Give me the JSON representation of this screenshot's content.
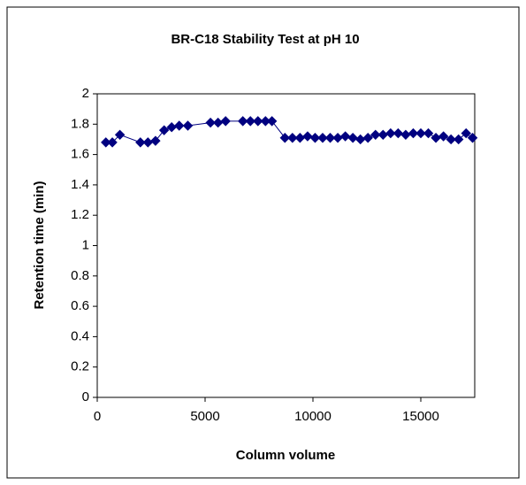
{
  "chart_data": {
    "type": "line",
    "title": "BR-C18 Stability Test at pH 10",
    "x_label": "Column volume",
    "y_label": "Retention time (min)",
    "x": [
      400,
      700,
      1050,
      2000,
      2350,
      2700,
      3100,
      3450,
      3800,
      4200,
      5250,
      5600,
      5950,
      6750,
      7100,
      7450,
      7800,
      8100,
      8700,
      9050,
      9400,
      9750,
      10100,
      10450,
      10800,
      11150,
      11500,
      11850,
      12200,
      12550,
      12900,
      13250,
      13600,
      13950,
      14300,
      14650,
      15000,
      15350,
      15700,
      16050,
      16400,
      16750,
      17100,
      17400
    ],
    "series": [
      {
        "name": "Retention time",
        "color": "#000080",
        "values": [
          1.68,
          1.68,
          1.73,
          1.68,
          1.68,
          1.69,
          1.76,
          1.78,
          1.79,
          1.79,
          1.81,
          1.81,
          1.82,
          1.82,
          1.82,
          1.82,
          1.82,
          1.82,
          1.71,
          1.71,
          1.71,
          1.72,
          1.71,
          1.71,
          1.71,
          1.71,
          1.72,
          1.71,
          1.7,
          1.71,
          1.73,
          1.73,
          1.74,
          1.74,
          1.73,
          1.74,
          1.74,
          1.74,
          1.71,
          1.72,
          1.7,
          1.7,
          1.74,
          1.71
        ]
      }
    ],
    "xlim": [
      0,
      17500
    ],
    "xticks": [
      0,
      5000,
      10000,
      15000
    ],
    "ylim": [
      0,
      2
    ],
    "yticks": [
      0,
      0.2,
      0.4,
      0.6,
      0.8,
      1,
      1.2,
      1.4,
      1.6,
      1.8,
      2
    ]
  }
}
